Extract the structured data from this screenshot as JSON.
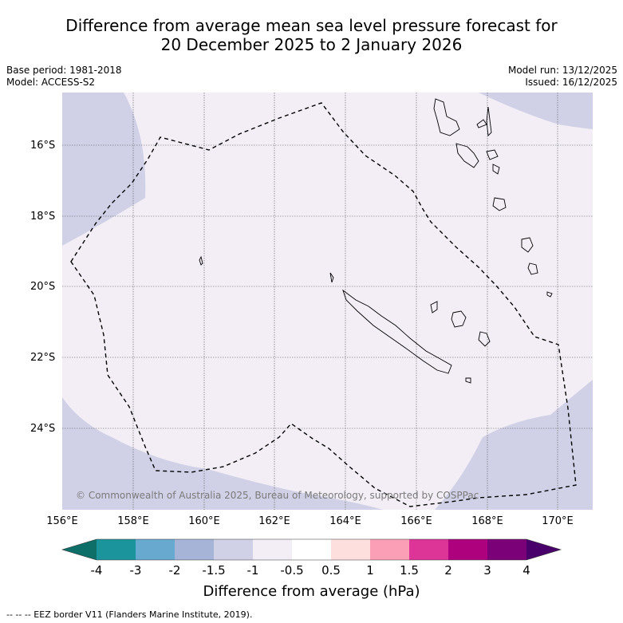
{
  "title": {
    "line1": "Difference from average mean sea level pressure forecast for",
    "line2": "20 December 2025 to 2 January 2026"
  },
  "meta": {
    "base_period": "Base period: 1981-2018",
    "model": "Model: ACCESS-S2",
    "model_run": "Model run: 13/12/2025",
    "issued": "Issued: 16/12/2025"
  },
  "copyright": "© Commonwealth of Australia 2025, Bureau of Meteorology, supported by COSPPac",
  "map": {
    "lon_labels": [
      "156°E",
      "158°E",
      "160°E",
      "162°E",
      "164°E",
      "166°E",
      "168°E",
      "170°E"
    ],
    "lat_labels": [
      "16°S",
      "18°S",
      "20°S",
      "22°S",
      "24°S"
    ],
    "land_fill": "#f3eef6",
    "low_fill": "#d0d1e6"
  },
  "colorbar": {
    "ticks": [
      "-4",
      "-3",
      "-2",
      "-1.5",
      "-1",
      "-0.5",
      "0.5",
      "1",
      "1.5",
      "2",
      "3",
      "4"
    ],
    "colors": [
      "#0e6e68",
      "#1c949c",
      "#67a9cf",
      "#a6b5d7",
      "#d0d1e6",
      "#f3eef6",
      "#ffffff",
      "#fde0dd",
      "#fa9fb5",
      "#dd3497",
      "#ae017e",
      "#7a0177",
      "#49006a"
    ],
    "label": "Difference from average (hPa)"
  },
  "legend": "-- -- -- EEZ border V11 (Flanders Marine Institute, 2019)."
}
